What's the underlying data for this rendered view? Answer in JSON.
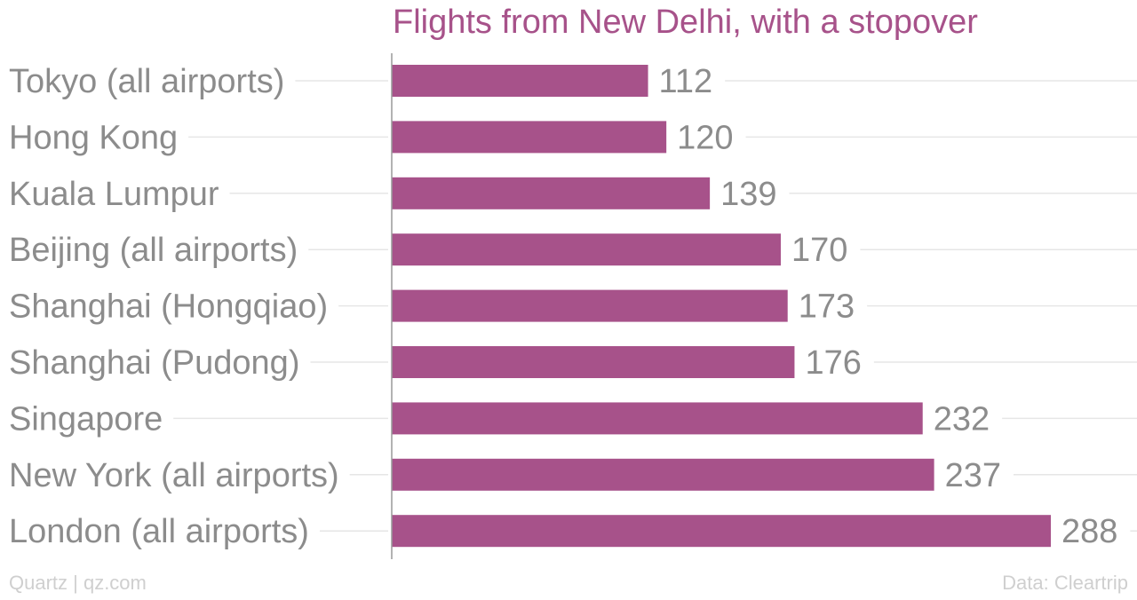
{
  "chart_data": {
    "type": "bar",
    "orientation": "horizontal",
    "title": "Flights from New Delhi, with a stopover",
    "categories": [
      "Tokyo (all airports)",
      "Hong Kong",
      "Kuala Lumpur",
      "Beijing (all airports)",
      "Shanghai (Hongqiao)",
      "Shanghai (Pudong)",
      "Singapore",
      "New York (all airports)",
      "London (all airports)"
    ],
    "values": [
      112,
      120,
      139,
      170,
      173,
      176,
      232,
      237,
      288
    ],
    "xlim": [
      0,
      288
    ],
    "grid": true,
    "colors": {
      "bar": "#a7528a",
      "title": "#a7528a",
      "label": "#8c8c8c",
      "grid": "#e6e6e6",
      "axis": "#999999",
      "footer": "#cfcfcf"
    }
  },
  "footer": {
    "source_left": "Quartz | qz.com",
    "source_right": "Data: Cleartrip"
  }
}
